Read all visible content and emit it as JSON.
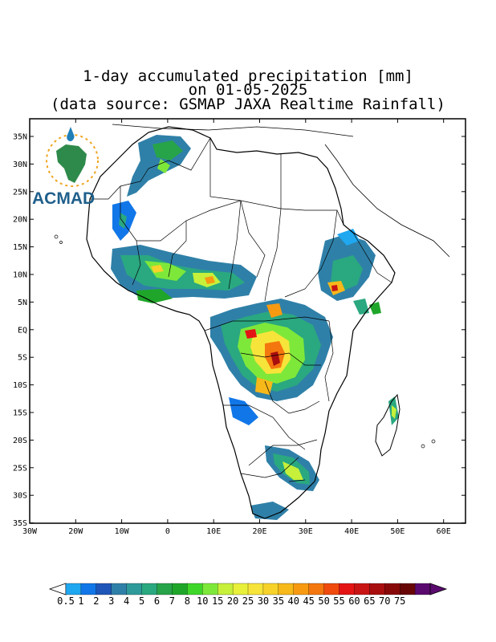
{
  "title": {
    "line1": "1-day accumulated precipitation [mm]",
    "line2": "on 01-05-2025",
    "line3": "(data source: GSMAP JAXA Realtime Rainfall)"
  },
  "logo": {
    "text": "ACMAD",
    "icon": "africa-continent-logo-icon"
  },
  "axes": {
    "lat_labels": [
      "35N",
      "30N",
      "25N",
      "20N",
      "15N",
      "10N",
      "5N",
      "EQ",
      "5S",
      "10S",
      "15S",
      "20S",
      "25S",
      "30S",
      "35S"
    ],
    "lon_labels": [
      "30W",
      "20W",
      "10W",
      "0",
      "10E",
      "20E",
      "30E",
      "40E",
      "50E",
      "60E"
    ]
  },
  "colorbar": {
    "labels": [
      "0.5",
      "1",
      "2",
      "3",
      "4",
      "5",
      "6",
      "7",
      "8",
      "10",
      "15",
      "20",
      "25",
      "30",
      "35",
      "40",
      "45",
      "50",
      "55",
      "60",
      "65",
      "70",
      "75"
    ],
    "colors": [
      "#1fa7f0",
      "#1177e8",
      "#1e55b8",
      "#2f80a8",
      "#2e9a9a",
      "#2aa880",
      "#27a34a",
      "#1fa62a",
      "#3fd62a",
      "#7ee83a",
      "#c6f03a",
      "#e8f03a",
      "#f7e43a",
      "#f7d22a",
      "#f7b81a",
      "#f79a12",
      "#f4760e",
      "#f04a0e",
      "#e41414",
      "#c81414",
      "#a80e0e",
      "#880808",
      "#680606",
      "#5a0a6e"
    ]
  },
  "colors": {
    "coast": "#000000",
    "frame": "#000000"
  }
}
